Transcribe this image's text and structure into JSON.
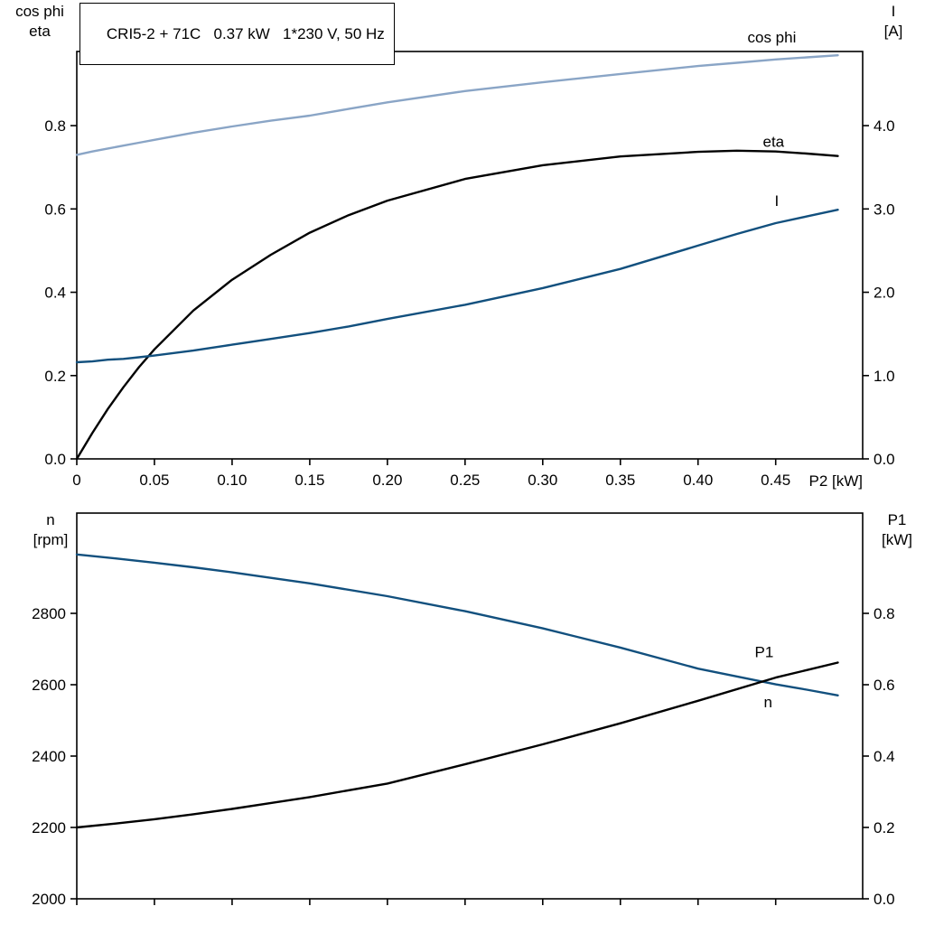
{
  "title_box": {
    "text": "CRI5-2 + 71C   0.37 kW   1*230 V, 50 Hz"
  },
  "colors": {
    "light_blue": "#8aa5c6",
    "dark_blue": "#12507e",
    "black": "#000000"
  },
  "chart_data": [
    {
      "id": "top",
      "type": "line",
      "x_axis": {
        "label": "P2 [kW]",
        "range": [
          0,
          0.506
        ],
        "ticks": [
          0,
          0.05,
          0.1,
          0.15,
          0.2,
          0.25,
          0.3,
          0.35,
          0.4,
          0.45
        ],
        "tick_labels": [
          "0",
          "0.05",
          "0.10",
          "0.15",
          "0.20",
          "0.25",
          "0.30",
          "0.35",
          "0.40",
          "0.45"
        ],
        "show_tick_labels": true
      },
      "y_axis_left": {
        "title_lines": [
          "cos phi",
          "eta"
        ],
        "range": [
          0,
          0.978
        ],
        "ticks": [
          0.0,
          0.2,
          0.4,
          0.6,
          0.8
        ],
        "tick_labels": [
          "0.0",
          "0.2",
          "0.4",
          "0.6",
          "0.8"
        ]
      },
      "y_axis_right": {
        "title_lines": [
          "I",
          "[A]"
        ],
        "range": [
          0,
          4.89
        ],
        "ticks": [
          0.0,
          1.0,
          2.0,
          3.0,
          4.0
        ],
        "tick_labels": [
          "0.0",
          "1.0",
          "2.0",
          "3.0",
          "4.0"
        ]
      },
      "x": [
        0,
        0.01,
        0.02,
        0.03,
        0.04,
        0.05,
        0.075,
        0.1,
        0.125,
        0.15,
        0.175,
        0.2,
        0.25,
        0.3,
        0.35,
        0.4,
        0.425,
        0.45,
        0.47,
        0.49
      ],
      "series": [
        {
          "name": "cos phi",
          "axis": "left",
          "color": "#8aa5c6",
          "label_offset": [
            -100,
            -14
          ],
          "values": [
            0.73,
            0.738,
            0.745,
            0.752,
            0.759,
            0.766,
            0.783,
            0.798,
            0.812,
            0.824,
            0.84,
            0.856,
            0.883,
            0.904,
            0.924,
            0.943,
            0.951,
            0.959,
            0.964,
            0.969
          ]
        },
        {
          "name": "eta",
          "axis": "left",
          "color": "#000000",
          "label_offset": [
            -83,
            -10
          ],
          "values": [
            0.0,
            0.062,
            0.12,
            0.172,
            0.22,
            0.263,
            0.356,
            0.43,
            0.49,
            0.543,
            0.585,
            0.62,
            0.672,
            0.705,
            0.726,
            0.737,
            0.74,
            0.738,
            0.733,
            0.727
          ]
        },
        {
          "name": "I",
          "axis": "right",
          "color": "#12507e",
          "label_offset": [
            -70,
            -4
          ],
          "values": [
            1.16,
            1.17,
            1.19,
            1.2,
            1.22,
            1.24,
            1.3,
            1.37,
            1.44,
            1.51,
            1.59,
            1.68,
            1.85,
            2.05,
            2.28,
            2.56,
            2.7,
            2.83,
            2.91,
            2.99
          ]
        }
      ]
    },
    {
      "id": "bottom",
      "type": "line",
      "x_axis": {
        "label": "",
        "range": [
          0,
          0.506
        ],
        "ticks": [
          0,
          0.05,
          0.1,
          0.15,
          0.2,
          0.25,
          0.3,
          0.35,
          0.4,
          0.45
        ],
        "tick_labels": [
          "",
          "",
          "",
          "",
          "",
          "",
          "",
          "",
          "",
          ""
        ],
        "show_tick_labels": false
      },
      "y_axis_left": {
        "title_lines": [
          "n",
          "[rpm]"
        ],
        "range": [
          2000,
          3081
        ],
        "ticks": [
          2000,
          2200,
          2400,
          2600,
          2800
        ],
        "tick_labels": [
          "2000",
          "2200",
          "2400",
          "2600",
          "2800"
        ]
      },
      "y_axis_right": {
        "title_lines": [
          "P1",
          "[kW]"
        ],
        "range": [
          0,
          1.081
        ],
        "ticks": [
          0.0,
          0.2,
          0.4,
          0.6,
          0.8
        ],
        "tick_labels": [
          "0.0",
          "0.2",
          "0.4",
          "0.6",
          "0.8"
        ]
      },
      "x": [
        0,
        0.025,
        0.05,
        0.075,
        0.1,
        0.15,
        0.2,
        0.25,
        0.3,
        0.35,
        0.4,
        0.45,
        0.47,
        0.49
      ],
      "series": [
        {
          "name": "n",
          "axis": "left",
          "color": "#12507e",
          "label_offset": [
            -82,
            13
          ],
          "values": [
            2965,
            2954,
            2942,
            2929,
            2915,
            2884,
            2848,
            2806,
            2758,
            2704,
            2645,
            2601,
            2586,
            2570
          ]
        },
        {
          "name": "P1",
          "axis": "right",
          "color": "#000000",
          "label_offset": [
            -92,
            -6
          ],
          "values": [
            0.2,
            0.211,
            0.223,
            0.237,
            0.252,
            0.285,
            0.323,
            0.377,
            0.433,
            0.492,
            0.555,
            0.62,
            0.641,
            0.662
          ]
        }
      ]
    }
  ]
}
